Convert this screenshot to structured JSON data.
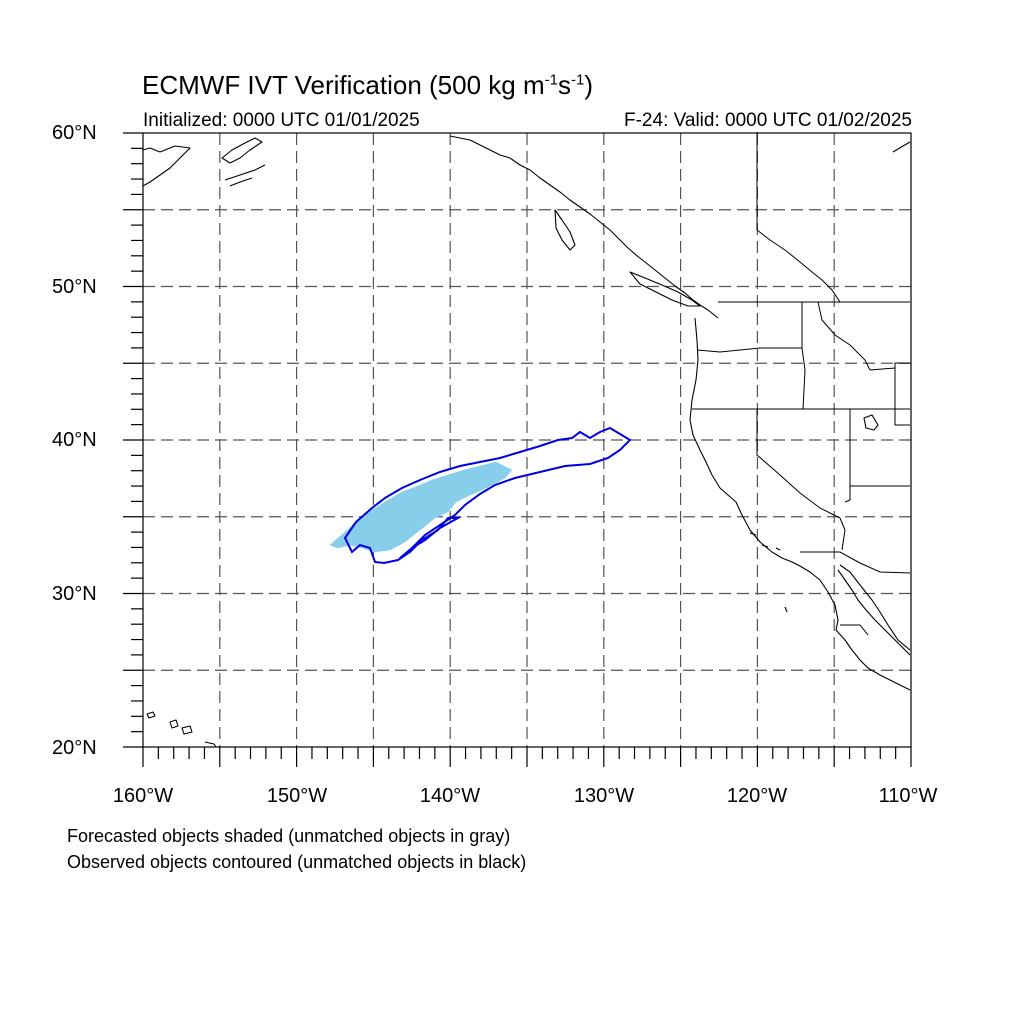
{
  "title": {
    "main": "ECMWF IVT Verification (500 kg m",
    "exp1": "-1",
    "mid": "s",
    "exp2": "-1",
    "end": ")"
  },
  "subtitle_left": "Initialized: 0000 UTC 01/01/2025",
  "subtitle_right": "F-24: Valid: 0000 UTC 01/02/2025",
  "lat_labels": [
    "60°N",
    "50°N",
    "40°N",
    "30°N",
    "20°N"
  ],
  "lon_labels": [
    "160°W",
    "150°W",
    "140°W",
    "130°W",
    "120°W",
    "110°W"
  ],
  "footnotes": [
    "Forecasted objects shaded (unmatched objects in gray)",
    "Observed objects contoured (unmatched objects in black)"
  ],
  "map": {
    "projection": "cylindrical equidistant",
    "lon_range": [
      -160,
      -110
    ],
    "lat_range": [
      20,
      60
    ],
    "gridline_spacing_deg": 5,
    "gridlines": "dashed"
  },
  "colors": {
    "forecast_object_fill": "#87ceeb",
    "observed_object_contour": "#0000e6",
    "coastline": "#000000",
    "grid": "#555555"
  }
}
